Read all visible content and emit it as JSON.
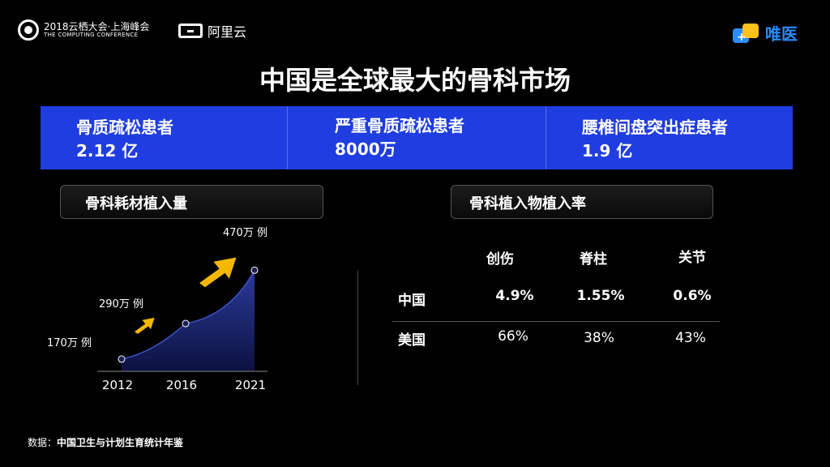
{
  "header": {
    "conf_title": "2018云栖大会·上海峰会",
    "conf_sub": "THE COMPUTING CONFERENCE",
    "partner": "阿里云",
    "brand": "唯医"
  },
  "title": "中国是全球最大的骨科市场",
  "stats": [
    {
      "label": "骨质疏松患者",
      "value": "2.12 亿"
    },
    {
      "label": "严重骨质疏松患者",
      "value": "8000万"
    },
    {
      "label": "腰椎间盘突出症患者",
      "value": "1.9 亿"
    }
  ],
  "left_section": {
    "title": "骨科耗材植入量"
  },
  "right_section": {
    "title": "骨科植入物植入率"
  },
  "chart_data": {
    "type": "area",
    "title": "骨科耗材植入量",
    "x": [
      "2012",
      "2016",
      "2021"
    ],
    "values": [
      170,
      290,
      470
    ],
    "unit": "万例",
    "data_labels": [
      "170万 例",
      "290万  例",
      "470万 例"
    ],
    "colors": {
      "area_top": "#2a3a9a",
      "area_bottom": "#0d1240",
      "arrow": "#f5b800",
      "axis": "#888"
    }
  },
  "table": {
    "columns": [
      "创伤",
      "脊柱",
      "关节"
    ],
    "rows": [
      {
        "name": "中国",
        "values": [
          "4.9%",
          "1.55%",
          "0.6%"
        ]
      },
      {
        "name": "美国",
        "values": [
          "66%",
          "38%",
          "43%"
        ]
      }
    ]
  },
  "footer": {
    "prefix": "数据：",
    "source": "中国卫生与计划生育统计年鉴"
  }
}
